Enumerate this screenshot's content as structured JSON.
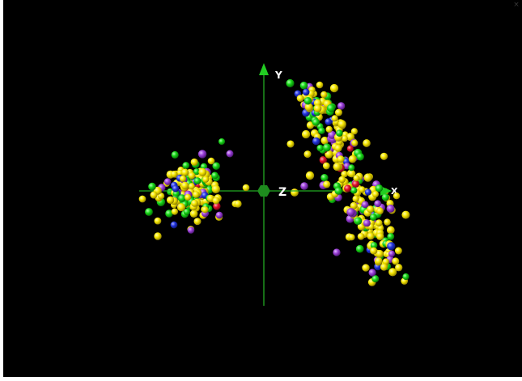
{
  "window": {
    "close_glyph": "×"
  },
  "axes": {
    "x_label": "X",
    "y_label": "Y",
    "z_label": "Z",
    "axis_color": "#22aa22",
    "origin_marker_color": "#1e8c1e"
  },
  "point_colors": {
    "yellow": "#f5e600",
    "green": "#16d616",
    "purple": "#9a3fd6",
    "blue": "#2233dd",
    "red": "#e0102a"
  },
  "icons": {
    "close": "close-icon",
    "origin": "hexagon-origin-icon"
  }
}
